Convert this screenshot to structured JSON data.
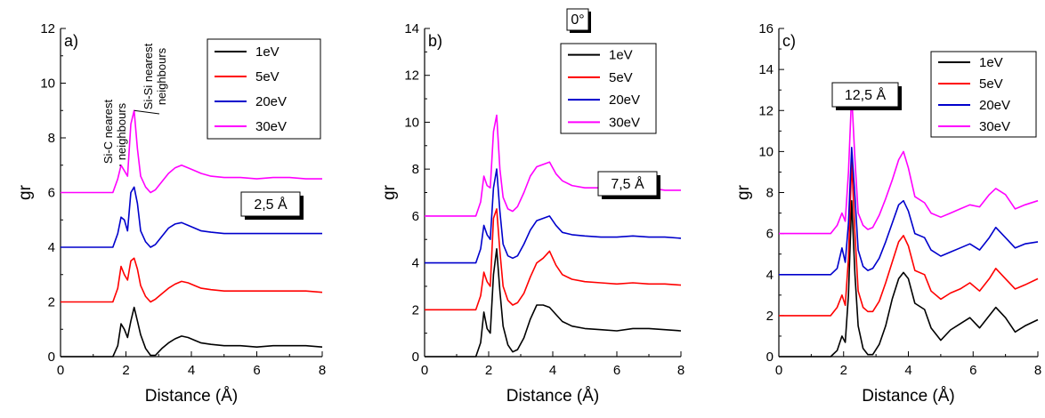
{
  "figure": {
    "series_names": [
      "1eV",
      "5eV",
      "20eV",
      "30eV"
    ],
    "series_colors": [
      "#000000",
      "#ff0000",
      "#0000cc",
      "#ff00ff"
    ]
  },
  "chart_data": [
    {
      "type": "line",
      "panel": "a)",
      "xlabel": "Distance (Å)",
      "ylabel": "gr",
      "xlim": [
        0,
        8
      ],
      "ylim": [
        0,
        12
      ],
      "x_ticks": [
        0,
        2,
        4,
        6,
        8
      ],
      "y_ticks": [
        0,
        2,
        4,
        6,
        8,
        10,
        12
      ],
      "legend_position": "top-right",
      "box_label": "2,5 Å",
      "annotations": [
        {
          "lines": [
            "Si-C nearest",
            "neighbours"
          ],
          "points_to": [
            1.85,
            7.0
          ]
        },
        {
          "lines": [
            "Si-Si nearest",
            "neighbours"
          ],
          "points_to": [
            2.25,
            9.0
          ]
        }
      ],
      "grid": false,
      "series": [
        {
          "name": "1eV",
          "color": "#000000",
          "x": [
            0,
            1.6,
            1.75,
            1.85,
            1.95,
            2.05,
            2.15,
            2.25,
            2.35,
            2.45,
            2.6,
            2.75,
            2.9,
            3.1,
            3.3,
            3.5,
            3.7,
            3.9,
            4.1,
            4.3,
            4.6,
            5.0,
            5.5,
            6.0,
            6.5,
            7.0,
            7.5,
            8.0
          ],
          "y": [
            0,
            0,
            0.4,
            1.2,
            1.0,
            0.7,
            1.3,
            1.8,
            1.3,
            0.8,
            0.3,
            0.05,
            0.05,
            0.3,
            0.5,
            0.65,
            0.75,
            0.7,
            0.6,
            0.5,
            0.45,
            0.4,
            0.4,
            0.35,
            0.4,
            0.4,
            0.4,
            0.35
          ]
        },
        {
          "name": "5eV",
          "color": "#ff0000",
          "x": [
            0,
            1.6,
            1.75,
            1.85,
            1.95,
            2.05,
            2.15,
            2.25,
            2.35,
            2.45,
            2.6,
            2.75,
            2.9,
            3.1,
            3.3,
            3.5,
            3.7,
            3.9,
            4.1,
            4.3,
            4.6,
            5.0,
            5.5,
            6.0,
            6.5,
            7.0,
            7.5,
            8.0
          ],
          "y": [
            2,
            2,
            2.5,
            3.3,
            3.0,
            2.8,
            3.5,
            3.6,
            3.2,
            2.6,
            2.2,
            2.0,
            2.1,
            2.3,
            2.5,
            2.65,
            2.75,
            2.7,
            2.6,
            2.5,
            2.45,
            2.4,
            2.4,
            2.4,
            2.4,
            2.4,
            2.4,
            2.35
          ]
        },
        {
          "name": "20eV",
          "color": "#0000cc",
          "x": [
            0,
            1.6,
            1.75,
            1.85,
            1.95,
            2.05,
            2.15,
            2.25,
            2.35,
            2.45,
            2.6,
            2.75,
            2.9,
            3.1,
            3.3,
            3.5,
            3.7,
            3.9,
            4.1,
            4.3,
            4.6,
            5.0,
            5.5,
            6.0,
            6.5,
            7.0,
            7.5,
            8.0
          ],
          "y": [
            4,
            4,
            4.5,
            5.1,
            5.0,
            4.6,
            6.0,
            6.2,
            5.6,
            4.6,
            4.2,
            4.0,
            4.1,
            4.4,
            4.7,
            4.85,
            4.9,
            4.8,
            4.7,
            4.6,
            4.55,
            4.5,
            4.5,
            4.5,
            4.5,
            4.5,
            4.5,
            4.5
          ]
        },
        {
          "name": "30eV",
          "color": "#ff00ff",
          "x": [
            0,
            1.6,
            1.75,
            1.85,
            1.95,
            2.05,
            2.15,
            2.25,
            2.35,
            2.45,
            2.6,
            2.75,
            2.9,
            3.1,
            3.3,
            3.5,
            3.7,
            3.9,
            4.1,
            4.3,
            4.6,
            5.0,
            5.5,
            6.0,
            6.5,
            7.0,
            7.5,
            8.0
          ],
          "y": [
            6,
            6,
            6.5,
            7.0,
            6.8,
            6.6,
            8.5,
            9.0,
            7.6,
            6.6,
            6.2,
            6.0,
            6.1,
            6.4,
            6.7,
            6.9,
            7.0,
            6.9,
            6.8,
            6.7,
            6.6,
            6.55,
            6.55,
            6.5,
            6.55,
            6.55,
            6.5,
            6.5
          ]
        }
      ]
    },
    {
      "type": "line",
      "panel": "b)",
      "xlabel": "Distance (Å)",
      "ylabel": "gr",
      "xlim": [
        0,
        8
      ],
      "ylim": [
        0,
        14
      ],
      "x_ticks": [
        0,
        2,
        4,
        6,
        8
      ],
      "y_ticks": [
        0,
        2,
        4,
        6,
        8,
        10,
        12,
        14
      ],
      "legend_position": "top-right",
      "box_label": "7,5 Å",
      "header_label": "0°",
      "grid": false,
      "series": [
        {
          "name": "1eV",
          "color": "#000000",
          "x": [
            0,
            1.6,
            1.75,
            1.85,
            1.95,
            2.05,
            2.15,
            2.25,
            2.35,
            2.45,
            2.6,
            2.75,
            2.9,
            3.1,
            3.3,
            3.5,
            3.7,
            3.9,
            4.1,
            4.3,
            4.6,
            5.0,
            5.5,
            6.0,
            6.5,
            7.0,
            7.5,
            8.0
          ],
          "y": [
            0,
            0,
            0.6,
            1.9,
            1.2,
            1.0,
            3.5,
            4.6,
            2.8,
            1.3,
            0.5,
            0.2,
            0.3,
            0.8,
            1.6,
            2.2,
            2.2,
            2.1,
            1.8,
            1.5,
            1.3,
            1.2,
            1.15,
            1.1,
            1.2,
            1.2,
            1.15,
            1.1
          ]
        },
        {
          "name": "5eV",
          "color": "#ff0000",
          "x": [
            0,
            1.6,
            1.75,
            1.85,
            1.95,
            2.05,
            2.15,
            2.25,
            2.35,
            2.45,
            2.6,
            2.75,
            2.9,
            3.1,
            3.3,
            3.5,
            3.7,
            3.9,
            4.1,
            4.3,
            4.6,
            5.0,
            5.5,
            6.0,
            6.5,
            7.0,
            7.5,
            8.0
          ],
          "y": [
            2,
            2,
            2.6,
            3.6,
            3.2,
            3.0,
            5.9,
            6.3,
            4.5,
            3.0,
            2.4,
            2.2,
            2.3,
            2.7,
            3.4,
            4.0,
            4.2,
            4.5,
            3.9,
            3.5,
            3.3,
            3.2,
            3.15,
            3.1,
            3.15,
            3.1,
            3.1,
            3.05
          ]
        },
        {
          "name": "20eV",
          "color": "#0000cc",
          "x": [
            0,
            1.6,
            1.75,
            1.85,
            1.95,
            2.05,
            2.15,
            2.25,
            2.35,
            2.45,
            2.6,
            2.75,
            2.9,
            3.1,
            3.3,
            3.5,
            3.7,
            3.9,
            4.1,
            4.3,
            4.6,
            5.0,
            5.5,
            6.0,
            6.5,
            7.0,
            7.5,
            8.0
          ],
          "y": [
            4,
            4,
            4.6,
            5.6,
            5.2,
            5.0,
            7.2,
            8.0,
            6.2,
            4.8,
            4.3,
            4.2,
            4.3,
            4.8,
            5.4,
            5.8,
            5.9,
            6.0,
            5.6,
            5.3,
            5.2,
            5.15,
            5.1,
            5.1,
            5.15,
            5.1,
            5.1,
            5.05
          ]
        },
        {
          "name": "30eV",
          "color": "#ff00ff",
          "x": [
            0,
            1.6,
            1.75,
            1.85,
            1.95,
            2.05,
            2.15,
            2.25,
            2.35,
            2.45,
            2.6,
            2.75,
            2.9,
            3.1,
            3.3,
            3.5,
            3.7,
            3.9,
            4.1,
            4.3,
            4.6,
            5.0,
            5.5,
            6.0,
            6.5,
            7.0,
            7.5,
            8.0
          ],
          "y": [
            6,
            6,
            6.6,
            7.7,
            7.3,
            7.2,
            9.6,
            10.3,
            8.0,
            6.8,
            6.3,
            6.2,
            6.4,
            7.0,
            7.7,
            8.1,
            8.2,
            8.3,
            7.8,
            7.5,
            7.3,
            7.2,
            7.2,
            7.1,
            7.2,
            7.2,
            7.1,
            7.1
          ]
        }
      ]
    },
    {
      "type": "line",
      "panel": "c)",
      "xlabel": "Distance (Å)",
      "ylabel": "gr",
      "xlim": [
        0,
        8
      ],
      "ylim": [
        0,
        16
      ],
      "x_ticks": [
        0,
        2,
        4,
        6,
        8
      ],
      "y_ticks": [
        0,
        2,
        4,
        6,
        8,
        10,
        12,
        14,
        16
      ],
      "legend_position": "top-right",
      "box_label": "12,5 Å",
      "grid": false,
      "series": [
        {
          "name": "1eV",
          "color": "#000000",
          "x": [
            0,
            1.6,
            1.8,
            1.95,
            2.05,
            2.15,
            2.25,
            2.35,
            2.45,
            2.6,
            2.75,
            2.9,
            3.1,
            3.3,
            3.5,
            3.7,
            3.85,
            4.0,
            4.2,
            4.5,
            4.7,
            5.0,
            5.3,
            5.6,
            5.9,
            6.2,
            6.5,
            6.7,
            7.0,
            7.3,
            7.6,
            8.0
          ],
          "y": [
            0,
            0,
            0.3,
            1.0,
            0.7,
            3.0,
            7.6,
            4.0,
            1.5,
            0.4,
            0.1,
            0.1,
            0.6,
            1.5,
            2.8,
            3.8,
            4.1,
            3.8,
            2.6,
            2.3,
            1.4,
            0.8,
            1.3,
            1.6,
            1.9,
            1.4,
            2.0,
            2.4,
            1.9,
            1.2,
            1.5,
            1.8
          ]
        },
        {
          "name": "5eV",
          "color": "#ff0000",
          "x": [
            0,
            1.6,
            1.8,
            1.95,
            2.05,
            2.15,
            2.25,
            2.35,
            2.45,
            2.6,
            2.75,
            2.9,
            3.1,
            3.3,
            3.5,
            3.7,
            3.85,
            4.0,
            4.2,
            4.5,
            4.7,
            5.0,
            5.3,
            5.6,
            5.9,
            6.2,
            6.5,
            6.7,
            7.0,
            7.3,
            7.6,
            8.0
          ],
          "y": [
            2,
            2,
            2.4,
            3.0,
            2.5,
            4.8,
            9.5,
            6.0,
            3.2,
            2.4,
            2.2,
            2.2,
            2.7,
            3.6,
            4.6,
            5.6,
            5.9,
            5.4,
            4.2,
            4.0,
            3.2,
            2.8,
            3.1,
            3.3,
            3.6,
            3.2,
            3.8,
            4.3,
            3.8,
            3.3,
            3.5,
            3.8
          ]
        },
        {
          "name": "20eV",
          "color": "#0000cc",
          "x": [
            0,
            1.6,
            1.8,
            1.95,
            2.05,
            2.15,
            2.25,
            2.35,
            2.45,
            2.6,
            2.75,
            2.9,
            3.1,
            3.3,
            3.5,
            3.7,
            3.85,
            4.0,
            4.2,
            4.5,
            4.7,
            5.0,
            5.3,
            5.6,
            5.9,
            6.2,
            6.5,
            6.7,
            7.0,
            7.3,
            7.6,
            8.0
          ],
          "y": [
            4,
            4,
            4.3,
            5.3,
            4.6,
            6.5,
            10.2,
            7.8,
            5.2,
            4.4,
            4.2,
            4.3,
            4.8,
            5.6,
            6.5,
            7.4,
            7.6,
            7.1,
            6.0,
            5.8,
            5.2,
            4.9,
            5.1,
            5.3,
            5.5,
            5.2,
            5.8,
            6.3,
            5.8,
            5.3,
            5.5,
            5.6
          ]
        },
        {
          "name": "30eV",
          "color": "#ff00ff",
          "x": [
            0,
            1.6,
            1.8,
            1.95,
            2.05,
            2.15,
            2.25,
            2.35,
            2.45,
            2.6,
            2.75,
            2.9,
            3.1,
            3.3,
            3.5,
            3.7,
            3.85,
            4.0,
            4.2,
            4.5,
            4.7,
            5.0,
            5.3,
            5.6,
            5.9,
            6.2,
            6.5,
            6.7,
            7.0,
            7.3,
            7.6,
            8.0
          ],
          "y": [
            6,
            6,
            6.4,
            7.0,
            6.6,
            9.0,
            12.8,
            9.6,
            7.0,
            6.4,
            6.2,
            6.3,
            6.9,
            7.7,
            8.6,
            9.6,
            10.0,
            9.2,
            7.8,
            7.5,
            7.0,
            6.8,
            7.0,
            7.2,
            7.4,
            7.3,
            7.9,
            8.2,
            7.9,
            7.2,
            7.4,
            7.6
          ]
        }
      ]
    }
  ]
}
